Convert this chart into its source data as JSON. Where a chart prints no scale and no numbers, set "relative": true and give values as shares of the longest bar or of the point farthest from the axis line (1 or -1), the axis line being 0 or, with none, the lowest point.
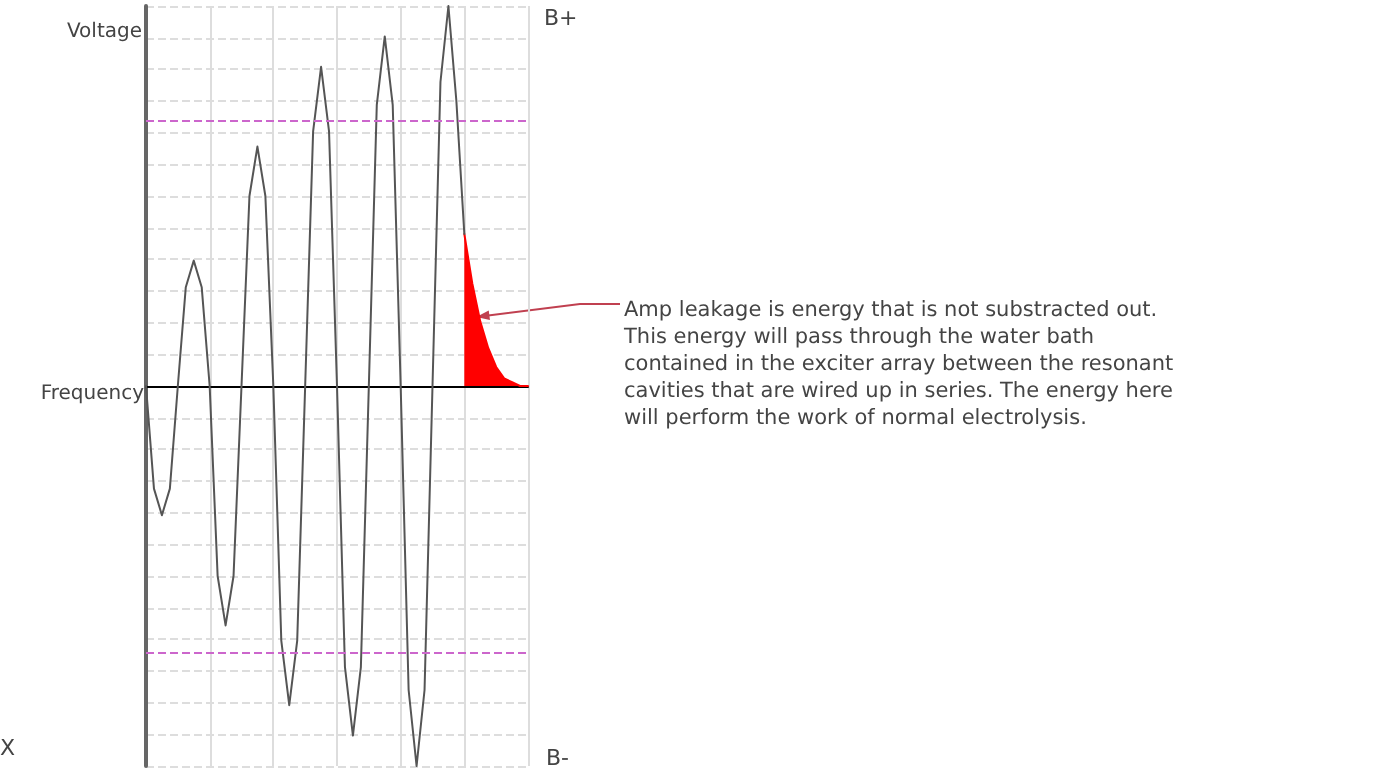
{
  "chart_data": {
    "type": "line",
    "relative": true,
    "xlabel": "Frequency",
    "ylabel": "Voltage",
    "tick_labels": false,
    "grid": true,
    "line_style": "solid",
    "categories": [
      null,
      null,
      null,
      null,
      null,
      null,
      null,
      null,
      null,
      null,
      null,
      null,
      null,
      null,
      null,
      null,
      null,
      null,
      null,
      null,
      null,
      null,
      null,
      null,
      null,
      null,
      null,
      null,
      null,
      null,
      null,
      null,
      null,
      null,
      null,
      null,
      null,
      null,
      null,
      null,
      null,
      null,
      null,
      null,
      null,
      null,
      null,
      null,
      null
    ],
    "series": [
      {
        "color": "#555555",
        "values": [
          0,
          -0.27,
          -0.34,
          -0.27,
          0,
          0.26,
          0.33,
          0.26,
          0,
          -0.5,
          -0.63,
          -0.5,
          0,
          0.5,
          0.63,
          0.5,
          0,
          -0.67,
          -0.84,
          -0.67,
          0,
          0.67,
          0.84,
          0.67,
          0,
          -0.74,
          -0.92,
          -0.74,
          0,
          0.74,
          0.92,
          0.74,
          0,
          -0.8,
          -1,
          -0.8,
          0,
          0.8,
          1,
          0.75,
          0.4,
          null,
          null,
          null,
          null,
          null,
          null,
          null,
          null
        ]
      },
      {
        "type": "area",
        "color": "#ff0000",
        "values": [
          null,
          null,
          null,
          null,
          null,
          null,
          null,
          null,
          null,
          null,
          null,
          null,
          null,
          null,
          null,
          null,
          null,
          null,
          null,
          null,
          null,
          null,
          null,
          null,
          null,
          null,
          null,
          null,
          null,
          null,
          null,
          null,
          null,
          null,
          null,
          null,
          null,
          null,
          null,
          null,
          0.4,
          0.27,
          0.17,
          0.1,
          0.05,
          0.02,
          0.01,
          0,
          0
        ]
      }
    ],
    "ref_lines": [
      {
        "axis": "y",
        "value": 0.7,
        "color": "#cc66cc",
        "line_style": "dashed"
      },
      {
        "axis": "y",
        "value": -0.7,
        "color": "#cc66cc",
        "line_style": "dashed"
      }
    ],
    "annotations": [
      "B+",
      "B-",
      "X",
      "Amp leakage is energy that is not substracted out.\nThis energy will pass through the water bath\ncontained in the exciter array between the resonant\ncavities that are wired up in series. The energy here\nwill perform the work of normal electrolysis."
    ]
  }
}
